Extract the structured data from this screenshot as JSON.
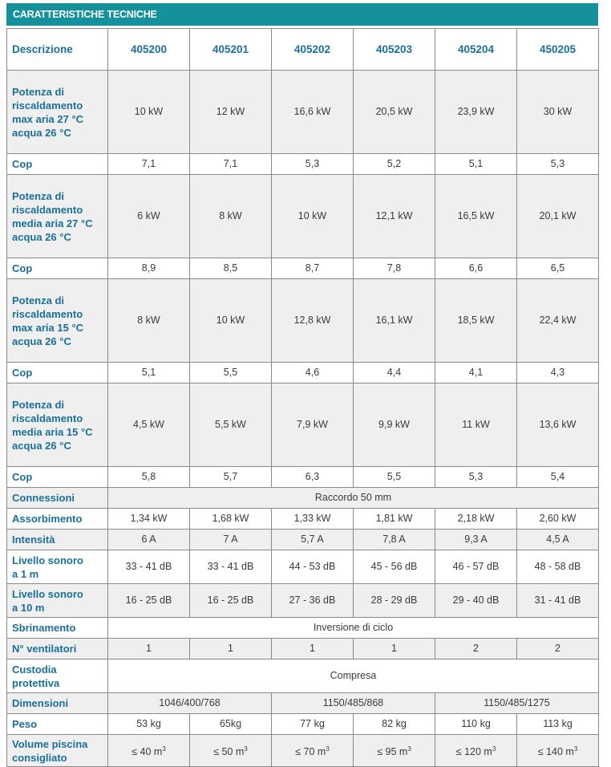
{
  "title": "CARATTERISTICHE TECNICHE",
  "header": [
    "Descrizione",
    "405200",
    "405201",
    "405202",
    "405203",
    "405204",
    "450205"
  ],
  "rows": [
    {
      "label": [
        "Potenza di",
        "riscaldamento",
        "max aria 27 °C",
        "acqua 26 °C"
      ],
      "values": [
        "10 kW",
        "12 kW",
        "16,6 kW",
        "20,5 kW",
        "23,9 kW",
        "30 kW"
      ]
    },
    {
      "label": [
        "Cop"
      ],
      "values": [
        "7,1",
        "7,1",
        "5,3",
        "5,2",
        "5,1",
        "5,3"
      ]
    },
    {
      "label": [
        "Potenza di",
        "riscaldamento",
        "media aria 27 °C",
        "acqua 26 °C"
      ],
      "values": [
        "6 kW",
        "8 kW",
        "10 kW",
        "12,1 kW",
        "16,5 kW",
        "20,1 kW"
      ]
    },
    {
      "label": [
        "Cop"
      ],
      "values": [
        "8,9",
        "8,5",
        "8,7",
        "7,8",
        "6,6",
        "6,5"
      ]
    },
    {
      "label": [
        "Potenza di",
        "riscaldamento",
        "max aria 15 °C",
        "acqua 26 °C"
      ],
      "values": [
        "8 kW",
        "10 kW",
        "12,8 kW",
        "16,1 kW",
        "18,5 kW",
        "22,4 kW"
      ]
    },
    {
      "label": [
        "Cop"
      ],
      "values": [
        "5,1",
        "5,5",
        "4,6",
        "4,4",
        "4,1",
        "4,3"
      ]
    },
    {
      "label": [
        "Potenza di",
        "riscaldamento",
        "media aria 15 °C",
        "acqua 26 °C"
      ],
      "values": [
        "4,5 kW",
        "5,5 kW",
        "7,9 kW",
        "9,9 kW",
        "11 kW",
        "13,6 kW"
      ]
    },
    {
      "label": [
        "Cop"
      ],
      "values": [
        "5,8",
        "5,7",
        "6,3",
        "5,5",
        "5,3",
        "5,4"
      ]
    },
    {
      "label": [
        "Connessioni"
      ],
      "span": "Raccordo 50 mm"
    },
    {
      "label": [
        "Assorbimento"
      ],
      "values": [
        "1,34 kW",
        "1,68 kW",
        "1,33 kW",
        "1,81 kW",
        "2,18 kW",
        "2,60 kW"
      ]
    },
    {
      "label": [
        "Intensità"
      ],
      "values": [
        "6 A",
        "7 A",
        "5,7 A",
        "7,8 A",
        "9,3 A",
        "4,5 A"
      ]
    },
    {
      "label": [
        "Livello sonoro",
        "a 1 m"
      ],
      "values": [
        "33 - 41 dB",
        "33 - 41 dB",
        "44 - 53 dB",
        "45 - 56 dB",
        "46 - 57 dB",
        "48 - 58 dB"
      ]
    },
    {
      "label": [
        "Livello sonoro",
        "a 10 m"
      ],
      "values": [
        "16 - 25 dB",
        "16 - 25 dB",
        "27 - 36 dB",
        "28 - 29 dB",
        "29 - 40 dB",
        "31 - 41 dB"
      ]
    },
    {
      "label": [
        "Sbrinamento"
      ],
      "span": "Inversione di ciclo"
    },
    {
      "label": [
        "N° ventilatori"
      ],
      "values": [
        "1",
        "1",
        "1",
        "1",
        "2",
        "2"
      ]
    },
    {
      "label": [
        "Custodia",
        "protettiva"
      ],
      "span": "Compresa"
    },
    {
      "label": [
        "Dimensioni"
      ],
      "pairs": [
        "1046/400/768",
        "1150/485/868",
        "1150/485/1275"
      ]
    },
    {
      "label": [
        "Peso"
      ],
      "values": [
        "53 kg",
        "65kg",
        "77 kg",
        "82 kg",
        "110 kg",
        "113 kg"
      ]
    },
    {
      "label": [
        "Volume piscina",
        "consigliato"
      ],
      "volumes": [
        {
          "base": "≤ 40 m",
          "sup": "3"
        },
        {
          "base": "≤ 50 m",
          "sup": "3"
        },
        {
          "base": "≤ 70 m",
          "sup": "3"
        },
        {
          "base": "≤ 95 m",
          "sup": "3"
        },
        {
          "base": "≤ 120 m",
          "sup": "3"
        },
        {
          "base": "≤ 140 m",
          "sup": "3"
        }
      ]
    }
  ]
}
